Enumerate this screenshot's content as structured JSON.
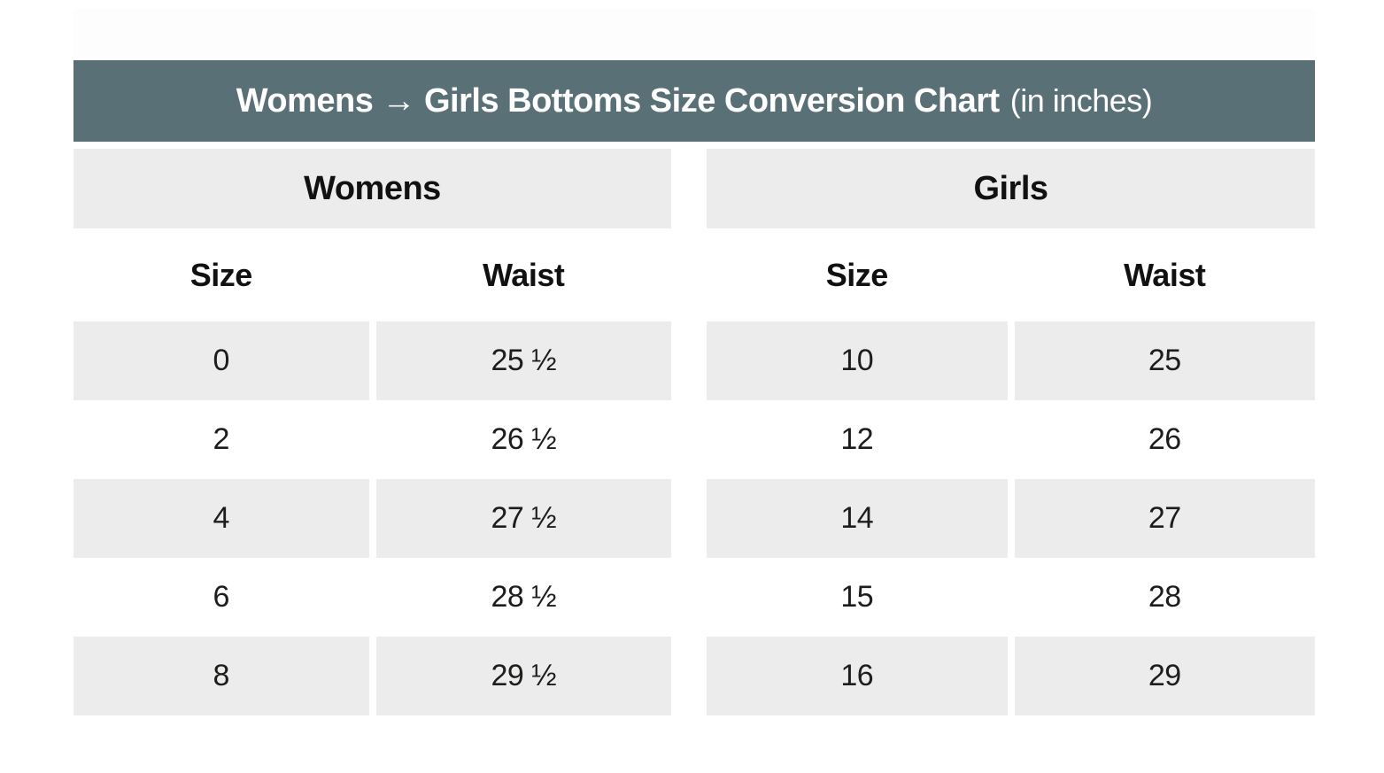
{
  "title": {
    "main": "Womens → Girls Bottoms Size Conversion Chart",
    "suffix": "(in inches)"
  },
  "colors": {
    "title_bar_bg": "#587076",
    "title_text": "#ffffff",
    "band_bg": "#ececec",
    "body_text": "#1d1d1b"
  },
  "sections": [
    {
      "name": "Womens",
      "columns": [
        "Size",
        "Waist"
      ],
      "rows": [
        [
          "0",
          "25 ½"
        ],
        [
          "2",
          "26 ½"
        ],
        [
          "4",
          "27 ½"
        ],
        [
          "6",
          "28 ½"
        ],
        [
          "8",
          "29 ½"
        ]
      ]
    },
    {
      "name": "Girls",
      "columns": [
        "Size",
        "Waist"
      ],
      "rows": [
        [
          "10",
          "25"
        ],
        [
          "12",
          "26"
        ],
        [
          "14",
          "27"
        ],
        [
          "15",
          "28"
        ],
        [
          "16",
          "29"
        ]
      ]
    }
  ],
  "chart_data": {
    "type": "table",
    "title": "Womens → Girls Bottoms Size Conversion Chart (in inches)",
    "series": [
      {
        "name": "Womens",
        "sizes": [
          0,
          2,
          4,
          6,
          8
        ],
        "waist_inches": [
          25.5,
          26.5,
          27.5,
          28.5,
          29.5
        ]
      },
      {
        "name": "Girls",
        "sizes": [
          10,
          12,
          14,
          15,
          16
        ],
        "waist_inches": [
          25,
          26,
          27,
          28,
          29
        ]
      }
    ]
  }
}
